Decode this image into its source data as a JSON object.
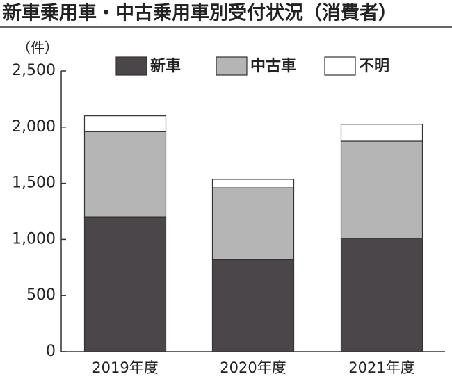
{
  "chart_data": {
    "type": "stacked_bar",
    "title": "新車乗用車・中古乗用車別受付状況（消費者）",
    "y_unit": "（件）",
    "categories": [
      "2019年度",
      "2020年度",
      "2021年度"
    ],
    "series": [
      {
        "name": "新車",
        "color": "#4a4649",
        "values": [
          1200,
          820,
          1010
        ]
      },
      {
        "name": "中古車",
        "color": "#b5b5b5",
        "values": [
          760,
          640,
          865
        ]
      },
      {
        "name": "不明",
        "color": "#ffffff",
        "values": [
          140,
          75,
          150
        ]
      }
    ],
    "ylim": [
      0,
      2500
    ],
    "yticks": [
      0,
      500,
      {
        "value": 1000,
        "label": "1,000"
      },
      {
        "value": 1500,
        "label": "1,500"
      },
      {
        "value": 2000,
        "label": "2,000"
      },
      {
        "value": 2500,
        "label": "2,500"
      }
    ]
  }
}
